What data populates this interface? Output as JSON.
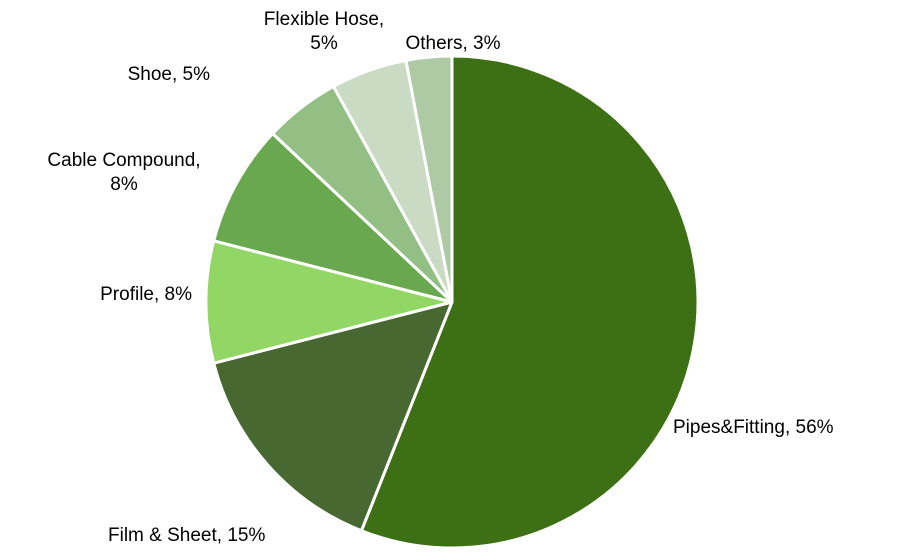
{
  "chart_data": {
    "type": "pie",
    "title": "",
    "start_angle_deg": 0,
    "direction": "clockwise",
    "slice_border_color": "#ffffff",
    "slices": [
      {
        "label": "Pipes&Fitting",
        "value": 56,
        "display": [
          "Pipes&Fitting, 56%"
        ],
        "color": "#3d7014"
      },
      {
        "label": "Film & Sheet",
        "value": 15,
        "display": [
          "Film & Sheet, 15%"
        ],
        "color": "#476830"
      },
      {
        "label": "Profile",
        "value": 8,
        "display": [
          "Profile, 8%"
        ],
        "color": "#92d665"
      },
      {
        "label": "Cable Compound",
        "value": 8,
        "display": [
          "Cable Compound,",
          "8%"
        ],
        "color": "#6aa84f"
      },
      {
        "label": "Shoe",
        "value": 5,
        "display": [
          "Shoe, 5%"
        ],
        "color": "#93bf85"
      },
      {
        "label": "Flexible Hose",
        "value": 5,
        "display": [
          "Flexible Hose,",
          "5%"
        ],
        "color": "#c9dcc3"
      },
      {
        "label": "Others",
        "value": 3,
        "display": [
          "Others, 3%"
        ],
        "color": "#adcaa5"
      }
    ]
  }
}
